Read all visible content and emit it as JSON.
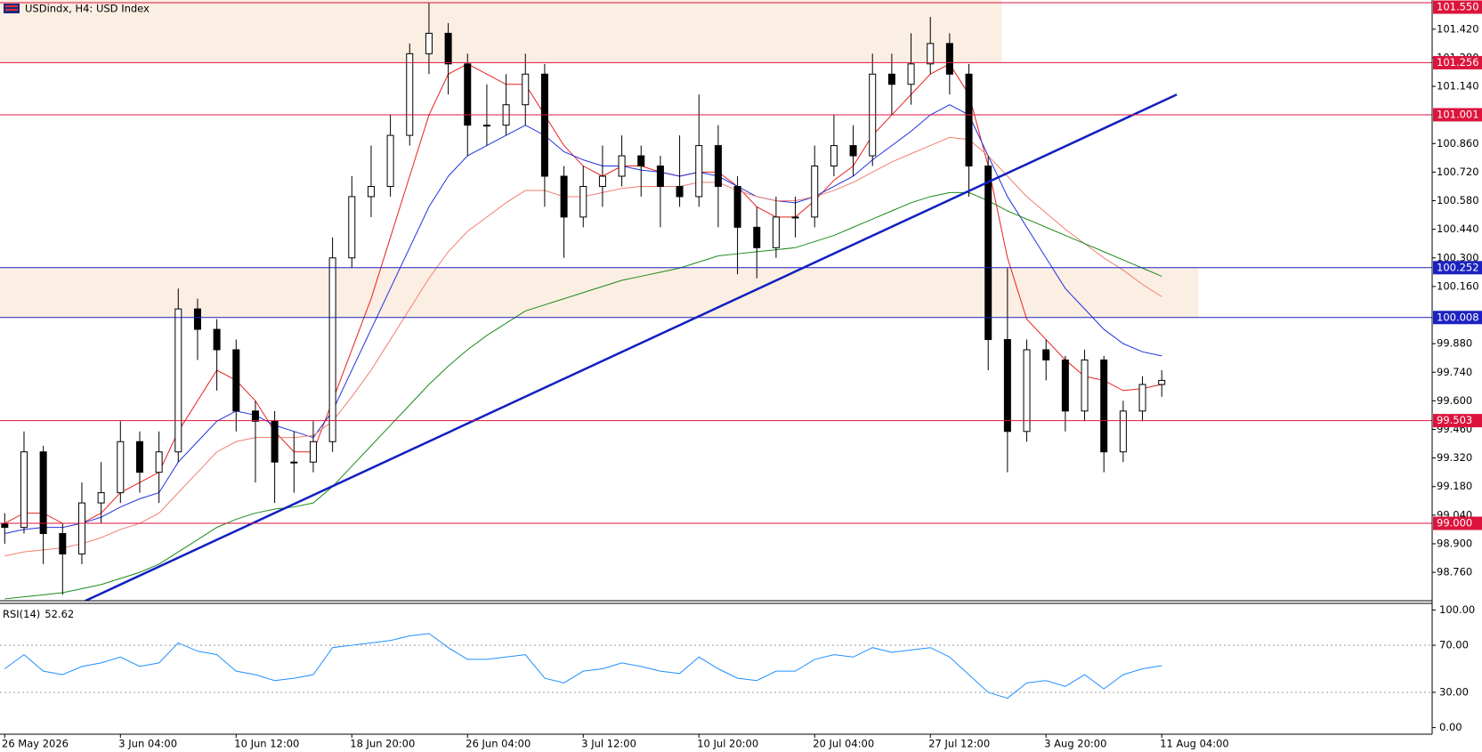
{
  "chart_data": {
    "type": "candlestick",
    "title": "USDindx, H4:  USD Index",
    "categories": [
      "26 May 2026",
      null,
      null,
      null,
      null,
      null,
      "3 Jun 04:00",
      null,
      null,
      null,
      null,
      null,
      "10 Jun 12:00",
      null,
      null,
      null,
      null,
      null,
      "18 Jun 20:00",
      null,
      null,
      null,
      null,
      null,
      "26 Jun 04:00",
      null,
      null,
      null,
      null,
      null,
      "3 Jul 12:00",
      null,
      null,
      null,
      null,
      null,
      "10 Jul 20:00",
      null,
      null,
      null,
      null,
      null,
      "20 Jul 04:00",
      null,
      null,
      null,
      null,
      null,
      "27 Jul 12:00",
      null,
      null,
      null,
      null,
      null,
      "3 Aug 20:00",
      null,
      null,
      null,
      null,
      null,
      "11 Aug 04:00"
    ],
    "open": [
      99.0,
      98.98,
      99.35,
      98.95,
      98.85,
      99.1,
      99.15,
      99.4,
      99.25,
      99.35,
      100.05,
      99.95,
      99.85,
      99.55,
      99.5,
      99.3,
      99.3,
      99.4,
      100.3,
      100.6,
      100.65,
      100.9,
      101.3,
      101.4,
      101.25,
      100.95,
      100.95,
      101.05,
      101.2,
      100.7,
      100.5,
      100.65,
      100.7,
      100.8,
      100.75,
      100.65,
      100.6,
      100.85,
      100.65,
      100.45,
      100.35,
      100.5,
      100.5,
      100.75,
      100.85,
      100.8,
      101.2,
      101.15,
      101.25,
      101.35,
      101.2,
      100.75,
      99.9,
      99.45,
      99.85,
      99.8,
      99.55,
      99.8,
      99.35,
      99.55,
      99.68
    ],
    "high": [
      99.05,
      99.45,
      99.38,
      99.0,
      99.2,
      99.3,
      99.5,
      99.45,
      99.45,
      100.15,
      100.1,
      100.0,
      99.9,
      99.6,
      99.55,
      99.45,
      99.5,
      100.4,
      100.7,
      100.85,
      101.0,
      101.35,
      101.55,
      101.45,
      101.3,
      101.15,
      101.2,
      101.3,
      101.25,
      100.75,
      100.75,
      100.85,
      100.9,
      100.85,
      100.8,
      100.9,
      101.1,
      100.95,
      100.7,
      100.55,
      100.6,
      100.6,
      100.85,
      101.0,
      100.95,
      101.3,
      101.3,
      101.4,
      101.48,
      101.4,
      101.25,
      100.8,
      100.25,
      99.9,
      99.9,
      99.82,
      99.85,
      99.82,
      99.6,
      99.72,
      99.75
    ],
    "low": [
      98.9,
      98.95,
      98.8,
      98.65,
      98.8,
      99.0,
      99.1,
      99.15,
      99.1,
      99.3,
      99.8,
      99.65,
      99.45,
      99.2,
      99.1,
      99.15,
      99.25,
      99.35,
      100.25,
      100.5,
      100.6,
      100.85,
      101.2,
      101.1,
      100.8,
      100.85,
      100.9,
      100.95,
      100.55,
      100.3,
      100.45,
      100.55,
      100.65,
      100.6,
      100.45,
      100.55,
      100.55,
      100.45,
      100.22,
      100.2,
      100.3,
      100.4,
      100.45,
      100.7,
      100.7,
      100.75,
      101.0,
      101.05,
      101.2,
      101.1,
      100.6,
      99.75,
      99.25,
      99.4,
      99.7,
      99.45,
      99.5,
      99.25,
      99.3,
      99.5,
      99.62
    ],
    "close": [
      98.98,
      99.35,
      98.95,
      98.85,
      99.1,
      99.15,
      99.4,
      99.25,
      99.35,
      100.05,
      99.95,
      99.85,
      99.55,
      99.5,
      99.3,
      99.3,
      99.4,
      100.3,
      100.6,
      100.65,
      100.9,
      101.3,
      101.4,
      101.25,
      100.95,
      100.95,
      101.05,
      101.2,
      100.7,
      100.5,
      100.65,
      100.7,
      100.8,
      100.75,
      100.65,
      100.6,
      100.85,
      100.65,
      100.45,
      100.35,
      100.5,
      100.5,
      100.75,
      100.85,
      100.8,
      101.2,
      101.15,
      101.25,
      101.35,
      101.2,
      100.75,
      99.9,
      99.45,
      99.85,
      99.8,
      99.55,
      99.8,
      99.35,
      99.55,
      99.68,
      99.7
    ],
    "up_color": "#ffffff",
    "down_color": "#000000",
    "series": [
      {
        "color": "#e8201c",
        "values": [
          99.0,
          99.05,
          99.05,
          99.0,
          99.0,
          99.05,
          99.15,
          99.2,
          99.25,
          99.45,
          99.6,
          99.75,
          99.7,
          99.6,
          99.45,
          99.35,
          99.35,
          99.6,
          99.85,
          100.1,
          100.4,
          100.7,
          101.0,
          101.2,
          101.25,
          101.2,
          101.15,
          101.15,
          101.0,
          100.85,
          100.75,
          100.7,
          100.75,
          100.75,
          100.72,
          100.7,
          100.72,
          100.72,
          100.65,
          100.55,
          100.5,
          100.5,
          100.58,
          100.68,
          100.75,
          100.9,
          101.0,
          101.1,
          101.2,
          101.25,
          101.1,
          100.75,
          100.3,
          100.0,
          99.9,
          99.8,
          99.72,
          99.7,
          99.65,
          99.66,
          99.68
        ]
      },
      {
        "color": "#2030e0",
        "values": [
          98.95,
          98.97,
          98.98,
          98.98,
          99.0,
          99.03,
          99.08,
          99.12,
          99.15,
          99.3,
          99.4,
          99.5,
          99.55,
          99.53,
          99.48,
          99.45,
          99.42,
          99.55,
          99.75,
          99.95,
          100.15,
          100.35,
          100.55,
          100.7,
          100.8,
          100.85,
          100.9,
          100.95,
          100.9,
          100.82,
          100.78,
          100.75,
          100.75,
          100.73,
          100.72,
          100.7,
          100.72,
          100.7,
          100.65,
          100.6,
          100.58,
          100.57,
          100.6,
          100.65,
          100.7,
          100.78,
          100.85,
          100.92,
          101.0,
          101.05,
          101.0,
          100.8,
          100.6,
          100.45,
          100.3,
          100.15,
          100.05,
          99.95,
          99.88,
          99.84,
          99.82
        ]
      },
      {
        "color": "#f08070",
        "values": [
          98.84,
          98.86,
          98.87,
          98.88,
          98.9,
          98.93,
          98.97,
          99.0,
          99.05,
          99.15,
          99.25,
          99.35,
          99.4,
          99.42,
          99.42,
          99.42,
          99.43,
          99.5,
          99.62,
          99.75,
          99.9,
          100.05,
          100.2,
          100.33,
          100.43,
          100.5,
          100.57,
          100.63,
          100.63,
          100.6,
          100.6,
          100.62,
          100.64,
          100.65,
          100.65,
          100.65,
          100.67,
          100.67,
          100.63,
          100.6,
          100.58,
          100.58,
          100.6,
          100.63,
          100.67,
          100.72,
          100.77,
          100.81,
          100.85,
          100.89,
          100.88,
          100.8,
          100.7,
          100.6,
          100.52,
          100.44,
          100.37,
          100.3,
          100.24,
          100.17,
          100.11
        ]
      },
      {
        "color": "#1a8a1a",
        "values": [
          98.63,
          98.64,
          98.65,
          98.66,
          98.68,
          98.7,
          98.73,
          98.76,
          98.8,
          98.86,
          98.92,
          98.98,
          99.02,
          99.05,
          99.07,
          99.08,
          99.1,
          99.18,
          99.28,
          99.38,
          99.48,
          99.58,
          99.68,
          99.77,
          99.85,
          99.92,
          99.98,
          100.04,
          100.07,
          100.1,
          100.13,
          100.16,
          100.19,
          100.21,
          100.23,
          100.25,
          100.28,
          100.31,
          100.32,
          100.33,
          100.34,
          100.35,
          100.38,
          100.41,
          100.45,
          100.49,
          100.53,
          100.57,
          100.6,
          100.62,
          100.62,
          100.58,
          100.53,
          100.49,
          100.45,
          100.41,
          100.37,
          100.33,
          100.29,
          100.25,
          100.21
        ]
      }
    ],
    "ylim": [
      98.621,
      101.563
    ],
    "yticks": [
      {
        "value": 101.42,
        "label": "101.420"
      },
      {
        "value": 101.28,
        "label": "101.280"
      },
      {
        "value": 101.14,
        "label": "101.140"
      },
      {
        "value": 100.86,
        "label": "100.860"
      },
      {
        "value": 100.72,
        "label": "100.720"
      },
      {
        "value": 100.58,
        "label": "100.580"
      },
      {
        "value": 100.44,
        "label": "100.440"
      },
      {
        "value": 100.3,
        "label": "100.300"
      },
      {
        "value": 100.16,
        "label": "100.160"
      },
      {
        "value": 99.88,
        "label": "99.880"
      },
      {
        "value": 99.74,
        "label": "99.740"
      },
      {
        "value": 99.6,
        "label": "99.600"
      },
      {
        "value": 99.46,
        "label": "99.460"
      },
      {
        "value": 99.32,
        "label": "99.320"
      },
      {
        "value": 99.18,
        "label": "99.180"
      },
      {
        "value": 99.04,
        "label": "99.040"
      },
      {
        "value": 98.9,
        "label": "98.900"
      },
      {
        "value": 98.76,
        "label": "98.760"
      }
    ],
    "grid": false,
    "levels": [
      {
        "value": 101.55,
        "label": "101.550",
        "color": "#dc143c"
      },
      {
        "value": 101.256,
        "label": "101.256",
        "color": "#dc143c"
      },
      {
        "value": 101.001,
        "label": "101.001",
        "color": "#dc143c"
      },
      {
        "value": 100.252,
        "label": "100.252",
        "color": "#1c22c0"
      },
      {
        "value": 100.008,
        "label": "100.008",
        "color": "#1c22c0"
      },
      {
        "value": 99.503,
        "label": "99.503",
        "color": "#dc143c"
      },
      {
        "value": 99.0,
        "label": "99.000",
        "color": "#dc143c"
      }
    ],
    "zones": [
      {
        "color": "#fbeee2",
        "x": [
          -0.25,
          51.7
        ],
        "y": [
          101.256,
          101.6
        ]
      },
      {
        "color": "#fbeee2",
        "x": [
          -0.25,
          61.9
        ],
        "y": [
          100.008,
          100.252
        ]
      }
    ],
    "trendline": {
      "color": "#1020c0",
      "x": [
        4.17,
        60.78
      ],
      "y": [
        98.62,
        101.1
      ]
    },
    "rsi": {
      "title": "RSI(14)",
      "color": "#1e90ff",
      "values": [
        50,
        62,
        48,
        45,
        52,
        55,
        60,
        52,
        55,
        72,
        65,
        62,
        48,
        45,
        40,
        42,
        45,
        68,
        70,
        72,
        74,
        78,
        80,
        68,
        58,
        58,
        60,
        62,
        42,
        38,
        48,
        50,
        55,
        52,
        48,
        46,
        60,
        50,
        42,
        40,
        48,
        48,
        58,
        62,
        60,
        68,
        64,
        66,
        68,
        60,
        45,
        30,
        25,
        38,
        40,
        35,
        45,
        33,
        45,
        50,
        52.62
      ],
      "ylim": [
        -5.6,
        105.6
      ],
      "yticks": [
        {
          "value": 100,
          "label": "100.00"
        },
        {
          "value": 70,
          "label": "70.00"
        },
        {
          "value": 30,
          "label": "30.00"
        },
        {
          "value": 0,
          "label": "0.00"
        }
      ],
      "levels": [
        70,
        30
      ]
    }
  }
}
